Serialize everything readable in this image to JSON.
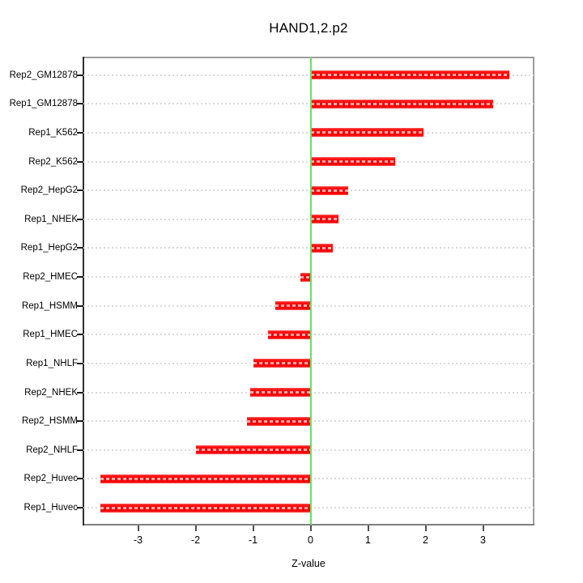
{
  "title": "HAND1,2.p2",
  "x_axis_label": "Z-value",
  "chart_data": {
    "type": "bar",
    "orientation": "horizontal",
    "title": "HAND1,2.p2",
    "xlabel": "Z-value",
    "ylabel": "",
    "categories": [
      "Rep2_GM12878",
      "Rep1_GM12878",
      "Rep1_K562",
      "Rep2_K562",
      "Rep2_HepG2",
      "Rep1_NHEK",
      "Rep1_HepG2",
      "Rep2_HMEC",
      "Rep1_HSMM",
      "Rep1_HMEC",
      "Rep1_NHLF",
      "Rep2_NHEK",
      "Rep2_HSMM",
      "Rep2_NHLF",
      "Rep2_Huvec",
      "Rep1_Huvec"
    ],
    "values": [
      3.45,
      3.17,
      1.96,
      1.47,
      0.66,
      0.48,
      0.38,
      -0.18,
      -0.62,
      -0.74,
      -1.0,
      -1.05,
      -1.11,
      -2.0,
      -3.66,
      -3.66
    ],
    "xticks": [
      -3,
      -2,
      -1,
      0,
      1,
      2,
      3
    ],
    "xlim": [
      -3.95,
      3.88
    ],
    "grid": "dotted horizontal gridline at each category",
    "legend_position": "none",
    "zero_reference_line": 0,
    "colors": {
      "bar": "#ff0000",
      "bar_dash_texture": "#ffa8a8",
      "zero_line": "#66e066",
      "gridline": "#dadada",
      "box": "#9c9c9c",
      "text": "#000000"
    }
  }
}
